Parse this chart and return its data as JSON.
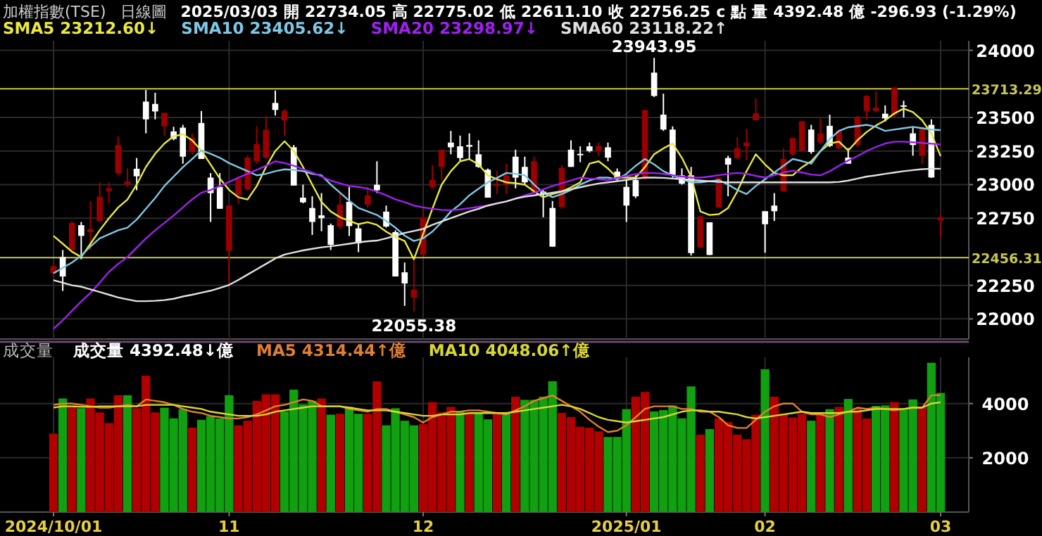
{
  "chart_data": [
    {
      "type": "candlestick",
      "title": "加權指數(TSE)",
      "subtitle": "日線圖",
      "annotations": [
        "2025/03/03",
        "開",
        "22734.05",
        "高",
        "22775.02",
        "低",
        "22611.10",
        "收",
        "22756.25",
        "c",
        "點",
        "量",
        "4392.48",
        "億",
        "-296.93 (-1.29%)",
        {
          "text": "23943.95",
          "y": 23943.95
        },
        {
          "text": "22055.38",
          "y": 22055.38
        }
      ],
      "categories": [
        "2024/10/01",
        null,
        null,
        null,
        null,
        null,
        null,
        null,
        null,
        null,
        null,
        null,
        null,
        null,
        null,
        null,
        null,
        null,
        null,
        "11",
        null,
        null,
        null,
        null,
        null,
        null,
        null,
        null,
        null,
        null,
        null,
        null,
        null,
        null,
        null,
        null,
        null,
        null,
        null,
        null,
        "12",
        null,
        null,
        null,
        null,
        null,
        null,
        null,
        null,
        null,
        null,
        null,
        null,
        null,
        null,
        null,
        null,
        null,
        null,
        null,
        null,
        null,
        "2025/01",
        null,
        null,
        null,
        null,
        null,
        null,
        null,
        null,
        null,
        null,
        null,
        null,
        null,
        null,
        "02",
        null,
        null,
        null,
        null,
        null,
        null,
        null,
        null,
        null,
        null,
        null,
        null,
        null,
        null,
        null,
        null,
        null,
        null,
        "03"
      ],
      "ohlc": [
        [
          22340,
          22416,
          22323,
          22392
        ],
        [
          22461,
          22513,
          22208,
          22316
        ],
        [
          22513,
          22729,
          22506,
          22715
        ],
        [
          22698,
          22722,
          22444,
          22618
        ],
        [
          22646,
          22878,
          22513,
          22670
        ],
        [
          22729,
          23017,
          22722,
          22910
        ],
        [
          22952,
          23017,
          22861,
          22973
        ],
        [
          23086,
          23358,
          23069,
          23295
        ],
        [
          22999,
          23121,
          22983,
          23024
        ],
        [
          23118,
          23198,
          22958,
          23062
        ],
        [
          23618,
          23705,
          23382,
          23486
        ],
        [
          23601,
          23684,
          23486,
          23545
        ],
        [
          23434,
          23535,
          23365,
          23535
        ],
        [
          23396,
          23431,
          23330,
          23340
        ],
        [
          23424,
          23445,
          23156,
          23208
        ],
        [
          23243,
          23382,
          23226,
          23347
        ],
        [
          23459,
          23549,
          23191,
          23191
        ],
        [
          23052,
          23086,
          22722,
          22937
        ],
        [
          22983,
          23086,
          22820,
          22820
        ],
        [
          22507,
          22846,
          22253,
          22846
        ],
        [
          22924,
          23060,
          22858,
          23045
        ],
        [
          22965,
          23218,
          22958,
          23201
        ],
        [
          23173,
          23434,
          23156,
          23302
        ],
        [
          23201,
          23510,
          23190,
          23409
        ],
        [
          23608,
          23701,
          23514,
          23556
        ],
        [
          23479,
          23563,
          23365,
          23549
        ],
        [
          23278,
          23295,
          22993,
          22993
        ],
        [
          22903,
          23000,
          22861,
          22868
        ],
        [
          22826,
          22913,
          22625,
          22722
        ],
        [
          22771,
          22937,
          22653,
          22750
        ],
        [
          22698,
          22710,
          22513,
          22552
        ],
        [
          22687,
          22931,
          22670,
          22851
        ],
        [
          22872,
          22983,
          22618,
          22691
        ],
        [
          22674,
          22712,
          22497,
          22563
        ],
        [
          22851,
          22983,
          22830,
          22920
        ],
        [
          22999,
          23174,
          22937,
          22958
        ],
        [
          22799,
          22844,
          22680,
          22688
        ],
        [
          22646,
          22660,
          22316,
          22316
        ],
        [
          22347,
          22420,
          22097,
          22264
        ],
        [
          22159,
          22437,
          22055.38,
          22218
        ],
        [
          22479,
          22809,
          22463,
          22750
        ],
        [
          22983,
          23145,
          22970,
          23034
        ],
        [
          23132,
          23260,
          23034,
          23260
        ],
        [
          23313,
          23400,
          23226,
          23278
        ],
        [
          23285,
          23365,
          23174,
          23198
        ],
        [
          23295,
          23382,
          23190,
          23282
        ],
        [
          23226,
          23330,
          23125,
          23132
        ],
        [
          23111,
          23120,
          22903,
          22903
        ],
        [
          22990,
          23104,
          22931,
          23007
        ],
        [
          22999,
          23156,
          22931,
          23069
        ],
        [
          23208,
          23260,
          22972,
          23052
        ],
        [
          23132,
          23208,
          23000,
          23017
        ],
        [
          22948,
          23208,
          22940,
          23174
        ],
        [
          22948,
          22958,
          22757,
          22931
        ],
        [
          22826,
          22878,
          22538,
          22538
        ],
        [
          22833,
          23145,
          22820,
          23125
        ],
        [
          23260,
          23330,
          23132,
          23132
        ],
        [
          23229,
          23285,
          23167,
          23222
        ],
        [
          23285,
          23313,
          23240,
          23250
        ],
        [
          23253,
          23313,
          23212,
          23288
        ],
        [
          23278,
          23313,
          23174,
          23201
        ],
        [
          23097,
          23120,
          23030,
          23042
        ],
        [
          22983,
          23034,
          22722,
          22844
        ],
        [
          23034,
          23069,
          22900,
          22913
        ],
        [
          23052,
          23556,
          23034,
          23556
        ],
        [
          23834,
          23943.95,
          23653,
          23660
        ],
        [
          23521,
          23677,
          23400,
          23410
        ],
        [
          23410,
          23434,
          23052,
          23069
        ],
        [
          23069,
          23121,
          23000,
          23007
        ],
        [
          23069,
          23132,
          22472,
          22490
        ],
        [
          22532,
          22764,
          22532,
          22764
        ],
        [
          22719,
          22719,
          22476,
          22476
        ],
        [
          22830,
          23059,
          22830,
          23052
        ],
        [
          23198,
          23215,
          22913,
          23149
        ],
        [
          23198,
          23354,
          23190,
          23271
        ],
        [
          23285,
          23417,
          23181,
          23313
        ],
        [
          23479,
          23642,
          23479,
          23531
        ],
        [
          22802,
          22802,
          22493,
          22705
        ],
        [
          22844,
          22937,
          22729,
          22802
        ],
        [
          22951,
          23271,
          22951,
          23191
        ],
        [
          23226,
          23347,
          23215,
          23347
        ],
        [
          23253,
          23472,
          23243,
          23472
        ],
        [
          23410,
          23445,
          23230,
          23243
        ],
        [
          23313,
          23493,
          23300,
          23382
        ],
        [
          23438,
          23521,
          23280,
          23288
        ],
        [
          23271,
          23410,
          23260,
          23400
        ],
        [
          23201,
          23271,
          23156,
          23156
        ],
        [
          23295,
          23514,
          23280,
          23504
        ],
        [
          23549,
          23667,
          23486,
          23660
        ],
        [
          23549,
          23695,
          23538,
          23573
        ],
        [
          23528,
          23590,
          23469,
          23493
        ],
        [
          23521,
          23729,
          23500,
          23722
        ],
        [
          23590,
          23625,
          23500,
          23580
        ],
        [
          23382,
          23424,
          23215,
          23295
        ],
        [
          23215,
          23424,
          23156,
          23424
        ],
        [
          23445,
          23486,
          23050,
          23053.18
        ],
        [
          22734.05,
          22775.02,
          22611.1,
          22756.25
        ]
      ],
      "colors": [
        "#990000",
        "#ffffff",
        "#990000",
        "#ffffff",
        "#990000",
        "#990000",
        "#990000",
        "#990000",
        "#990000",
        "#ffffff",
        "#ffffff",
        "#ffffff",
        "#990000",
        "#ffffff",
        "#ffffff",
        "#990000",
        "#ffffff",
        "#ffffff",
        "#ffffff",
        "#990000",
        "#990000",
        "#990000",
        "#990000",
        "#990000",
        "#ffffff",
        "#990000",
        "#ffffff",
        "#ffffff",
        "#ffffff",
        "#ffffff",
        "#ffffff",
        "#990000",
        "#ffffff",
        "#ffffff",
        "#990000",
        "#ffffff",
        "#ffffff",
        "#ffffff",
        "#ffffff",
        "#990000",
        "#990000",
        "#990000",
        "#990000",
        "#ffffff",
        "#ffffff",
        "#ffffff",
        "#ffffff",
        "#ffffff",
        "#990000",
        "#990000",
        "#ffffff",
        "#ffffff",
        "#990000",
        "#ffffff",
        "#ffffff",
        "#990000",
        "#ffffff",
        "#ffffff",
        "#ffffff",
        "#990000",
        "#ffffff",
        "#ffffff",
        "#ffffff",
        "#ffffff",
        "#990000",
        "#ffffff",
        "#ffffff",
        "#ffffff",
        "#ffffff",
        "#ffffff",
        "#990000",
        "#ffffff",
        "#990000",
        "#ffffff",
        "#990000",
        "#990000",
        "#990000",
        "#ffffff",
        "#ffffff",
        "#990000",
        "#990000",
        "#990000",
        "#ffffff",
        "#990000",
        "#ffffff",
        "#990000",
        "#ffffff",
        "#990000",
        "#990000",
        "#990000",
        "#ffffff",
        "#990000",
        "#ffffff",
        "#ffffff",
        "#990000",
        "#ffffff",
        "#990000"
      ],
      "series": [
        {
          "type": "line",
          "name": "SMA5 23212.60↓",
          "color": "#e8e840",
          "values": [
            22618,
            22560,
            22500,
            22461,
            22560,
            22660,
            22750,
            22830,
            22889,
            23000,
            23132,
            23230,
            23306,
            23360,
            23375,
            23330,
            23254,
            23150,
            23045,
            22960,
            22906,
            22889,
            22990,
            23132,
            23250,
            23323,
            23250,
            23132,
            23000,
            22871,
            22800,
            22757,
            22730,
            22705,
            22720,
            22700,
            22650,
            22610,
            22580,
            22444,
            22632,
            22820,
            23000,
            23100,
            23174,
            23190,
            23150,
            23069,
            23040,
            23017,
            23010,
            23000,
            22950,
            22906,
            22930,
            22948,
            22980,
            23017,
            23156,
            23174,
            23120,
            23052,
            23052,
            23052,
            23130,
            23226,
            23270,
            23306,
            23200,
            23060,
            22800,
            22774,
            22780,
            22826,
            22950,
            23100,
            23226,
            23150,
            23087,
            23069,
            23070,
            23130,
            23174,
            23250,
            23306,
            23320,
            23254,
            23330,
            23392,
            23440,
            23479,
            23530,
            23566,
            23540,
            23479,
            23380,
            23212.6
          ]
        },
        {
          "type": "line",
          "name": "SMA10 23405.62↓",
          "color": "#7ec8e3",
          "values": [
            22340,
            22380,
            22420,
            22470,
            22540,
            22600,
            22630,
            22660,
            22680,
            22740,
            22820,
            22900,
            22990,
            23060,
            23130,
            23190,
            23254,
            23230,
            23200,
            23160,
            23130,
            23100,
            23069,
            23080,
            23100,
            23114,
            23110,
            23100,
            23080,
            23069,
            23000,
            22940,
            22880,
            22826,
            22800,
            22774,
            22730,
            22680,
            22620,
            22580,
            22600,
            22650,
            22720,
            22800,
            22854,
            22920,
            22970,
            23017,
            23050,
            23087,
            23080,
            23070,
            23000,
            22940,
            22906,
            22930,
            22960,
            23000,
            23030,
            23052,
            23052,
            23040,
            23080,
            23140,
            23191,
            23150,
            23100,
            23069,
            23040,
            23017,
            23017,
            23025,
            23034,
            23000,
            22960,
            22930,
            22990,
            23040,
            23090,
            23140,
            23191,
            23175,
            23156,
            23250,
            23340,
            23400,
            23427,
            23436,
            23445,
            23430,
            23400,
            23410,
            23420,
            23430,
            23420,
            23410,
            23405.62
          ]
        },
        {
          "type": "line",
          "name": "SMA20 23298.97↓",
          "color": "#a020f0",
          "values": [
            21927,
            21990,
            22060,
            22130,
            22194,
            22270,
            22350,
            22410,
            22461,
            22530,
            22600,
            22660,
            22715,
            22770,
            22830,
            22890,
            22940,
            22960,
            22990,
            23020,
            23052,
            23080,
            23110,
            23140,
            23174,
            23160,
            23140,
            23114,
            23090,
            23060,
            23030,
            23010,
            22990,
            22983,
            22970,
            22948,
            22920,
            22890,
            22870,
            22844,
            22830,
            22820,
            22812,
            22809,
            22815,
            22825,
            22835,
            22844,
            22860,
            22875,
            22896,
            22920,
            22940,
            22965,
            22990,
            23010,
            23030,
            23052,
            23045,
            23040,
            23034,
            23050,
            23065,
            23078,
            23087,
            23087,
            23080,
            23070,
            23060,
            23052,
            23052,
            23060,
            23070,
            23080,
            23087,
            23080,
            23065,
            23052,
            23070,
            23090,
            23104,
            23090,
            23075,
            23069,
            23100,
            23140,
            23180,
            23212,
            23250,
            23280,
            23306,
            23320,
            23320,
            23315,
            23310,
            23305,
            23298.97
          ]
        },
        {
          "type": "line",
          "name": "SMA60 23118.22↑",
          "color": "#e0e0e0",
          "values": [
            22288,
            22270,
            22250,
            22240,
            22220,
            22200,
            22180,
            22160,
            22145,
            22132,
            22132,
            22135,
            22140,
            22150,
            22167,
            22180,
            22195,
            22210,
            22230,
            22253,
            22290,
            22330,
            22370,
            22410,
            22450,
            22479,
            22495,
            22510,
            22522,
            22533,
            22541,
            22550,
            22560,
            22570,
            22578,
            22583,
            22600,
            22620,
            22640,
            22655,
            22670,
            22700,
            22725,
            22750,
            22775,
            22800,
            22820,
            22844,
            22860,
            22875,
            22896,
            22910,
            22920,
            22930,
            22940,
            22950,
            22965,
            22980,
            22995,
            23008,
            23017,
            23025,
            23035,
            23045,
            23052,
            23052,
            23050,
            23045,
            23040,
            23035,
            23030,
            23025,
            23020,
            23017,
            23017,
            23017,
            23017,
            23017,
            23017,
            23017,
            23017,
            23017,
            23017,
            23017,
            23017,
            23020,
            23030,
            23045,
            23060,
            23069,
            23080,
            23090,
            23100,
            23108,
            23115,
            23118,
            23118.22
          ]
        }
      ],
      "ylim": [
        21850,
        24050
      ],
      "yticks": [
        22000,
        22250,
        22750,
        23000,
        23250,
        23500,
        24000
      ],
      "ref_lines": [
        {
          "axis": "y",
          "value": 23713.29,
          "label": "23713.29",
          "color": "#c8c850"
        },
        {
          "axis": "y",
          "value": 22456.31,
          "label": "22456.31",
          "color": "#c8c850"
        }
      ],
      "grid": true,
      "legend": "top left",
      "tick_labels": "y"
    },
    {
      "type": "bar",
      "title": "成交量",
      "categories": [
        "2024/10/01",
        null,
        null,
        null,
        null,
        null,
        null,
        null,
        null,
        null,
        null,
        null,
        null,
        null,
        null,
        null,
        null,
        null,
        null,
        "11",
        null,
        null,
        null,
        null,
        null,
        null,
        null,
        null,
        null,
        null,
        null,
        null,
        null,
        null,
        null,
        null,
        null,
        null,
        null,
        null,
        "12",
        null,
        null,
        null,
        null,
        null,
        null,
        null,
        null,
        null,
        null,
        null,
        null,
        null,
        null,
        null,
        null,
        null,
        null,
        null,
        null,
        null,
        "2025/01",
        null,
        null,
        null,
        null,
        null,
        null,
        null,
        null,
        null,
        null,
        null,
        null,
        null,
        null,
        "02",
        null,
        null,
        null,
        null,
        null,
        null,
        null,
        null,
        null,
        null,
        null,
        null,
        null,
        null,
        null,
        null,
        null,
        null,
        "03"
      ],
      "series": [
        {
          "type": "bar",
          "name": "成交量 4392.48↓億",
          "colors": [
            "#b00000",
            "#10a010",
            "#b00000",
            "#10a010",
            "#b00000",
            "#b00000",
            "#b00000",
            "#b00000",
            "#10a010",
            "#b00000",
            "#b00000",
            "#b00000",
            "#10a010",
            "#10a010",
            "#10a010",
            "#b00000",
            "#10a010",
            "#10a010",
            "#10a010",
            "#10a010",
            "#b00000",
            "#b00000",
            "#b00000",
            "#b00000",
            "#b00000",
            "#10a010",
            "#10a010",
            "#10a010",
            "#10a010",
            "#b00000",
            "#10a010",
            "#b00000",
            "#10a010",
            "#10a010",
            "#b00000",
            "#b00000",
            "#10a010",
            "#10a010",
            "#10a010",
            "#10a010",
            "#b00000",
            "#b00000",
            "#b00000",
            "#b00000",
            "#10a010",
            "#b00000",
            "#10a010",
            "#10a010",
            "#b00000",
            "#10a010",
            "#b00000",
            "#10a010",
            "#10a010",
            "#10a010",
            "#10a010",
            "#b00000",
            "#b00000",
            "#b00000",
            "#b00000",
            "#b00000",
            "#10a010",
            "#10a010",
            "#10a010",
            "#b00000",
            "#b00000",
            "#10a010",
            "#10a010",
            "#10a010",
            "#10a010",
            "#10a010",
            "#b00000",
            "#10a010",
            "#b00000",
            "#b00000",
            "#b00000",
            "#b00000",
            "#b00000",
            "#10a010",
            "#b00000",
            "#b00000",
            "#b00000",
            "#b00000",
            "#10a010",
            "#b00000",
            "#10a010",
            "#b00000",
            "#10a010",
            "#b00000",
            "#b00000",
            "#10a010",
            "#10a010",
            "#b00000",
            "#10a010",
            "#10a010",
            "#b00000",
            "#10a010",
            "#10a010"
          ],
          "values": [
            2889,
            4188,
            3933,
            3830,
            4188,
            3675,
            3282,
            4308,
            4308,
            3830,
            5026,
            3675,
            3846,
            3453,
            3795,
            3111,
            3402,
            3538,
            3453,
            4308,
            3197,
            3368,
            4103,
            4342,
            4342,
            3709,
            4513,
            3966,
            4103,
            4188,
            3590,
            3624,
            3880,
            3624,
            3624,
            4821,
            3197,
            3830,
            3368,
            3197,
            3248,
            4051,
            3675,
            3880,
            3709,
            3624,
            3658,
            3419,
            3624,
            3624,
            4256,
            4137,
            4137,
            4256,
            4821,
            3658,
            3504,
            3146,
            3111,
            2974,
            2769,
            2769,
            3795,
            4256,
            4427,
            3709,
            3760,
            3931,
            3453,
            4632,
            2855,
            3060,
            3453,
            3316,
            2855,
            2684,
            3590,
            5265,
            4256,
            3624,
            3487,
            3624,
            3368,
            3658,
            3795,
            3880,
            4171,
            3846,
            3453,
            3914,
            3931,
            4051,
            3795,
            4154,
            3880,
            5504,
            4392.48
          ]
        },
        {
          "type": "line",
          "name": "MA5 4314.44↑億",
          "color": "#e08030",
          "values": [
            3950,
            4000,
            4000,
            3950,
            3900,
            3850,
            3850,
            3900,
            3950,
            3900,
            4150,
            4100,
            4050,
            3950,
            3800,
            3700,
            3650,
            3550,
            3500,
            3450,
            3450,
            3500,
            3600,
            3750,
            3900,
            3950,
            4050,
            4150,
            4100,
            3900,
            3900,
            3900,
            3800,
            3750,
            3700,
            3800,
            3800,
            3700,
            3600,
            3500,
            3300,
            3500,
            3600,
            3700,
            3700,
            3750,
            3750,
            3700,
            3650,
            3600,
            3750,
            3900,
            4100,
            4200,
            4300,
            4100,
            3900,
            3700,
            3400,
            3150,
            2950,
            3000,
            3200,
            3500,
            3800,
            3900,
            3900,
            3900,
            3800,
            3800,
            3700,
            3700,
            3500,
            3200,
            3100,
            3100,
            3400,
            3700,
            3900,
            4000,
            4000,
            3700,
            3600,
            3600,
            3500,
            3600,
            3700,
            3850,
            3800,
            3850,
            3800,
            3750,
            3800,
            3850,
            3850,
            4300,
            4314.44
          ]
        },
        {
          "type": "line",
          "name": "MA10 4048.06↑億",
          "color": "#d8d830",
          "values": [
            3850,
            3900,
            3900,
            3880,
            3880,
            3900,
            3900,
            3900,
            3900,
            3900,
            3950,
            3950,
            3950,
            3950,
            3900,
            3850,
            3800,
            3700,
            3650,
            3600,
            3550,
            3550,
            3550,
            3600,
            3700,
            3750,
            3800,
            3850,
            3900,
            3900,
            3900,
            3900,
            3850,
            3800,
            3750,
            3750,
            3750,
            3700,
            3650,
            3600,
            3550,
            3550,
            3600,
            3600,
            3600,
            3650,
            3650,
            3650,
            3650,
            3650,
            3700,
            3750,
            3800,
            3850,
            3900,
            3950,
            3900,
            3800,
            3650,
            3500,
            3400,
            3350,
            3300,
            3350,
            3400,
            3450,
            3500,
            3600,
            3700,
            3750,
            3750,
            3700,
            3700,
            3650,
            3600,
            3500,
            3450,
            3500,
            3550,
            3600,
            3650,
            3700,
            3650,
            3650,
            3650,
            3650,
            3700,
            3700,
            3750,
            3800,
            3800,
            3800,
            3800,
            3850,
            3850,
            4000,
            4048.06
          ]
        }
      ],
      "ylim": [
        0,
        5600
      ],
      "yticks": [
        2000,
        4000
      ],
      "grid": true,
      "legend": "top left"
    }
  ]
}
